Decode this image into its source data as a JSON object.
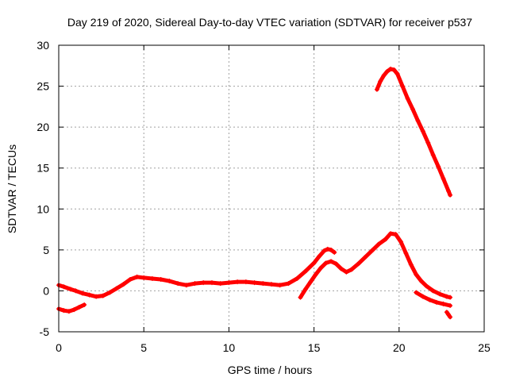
{
  "chart_data": {
    "type": "scatter",
    "title": "Day 219 of 2020, Sidereal Day-to-day VTEC variation (SDTVAR) for receiver p537",
    "xlabel": "GPS time / hours",
    "ylabel": "SDTVAR / TECUs",
    "xlim": [
      0,
      25
    ],
    "ylim": [
      -5,
      30
    ],
    "xticks": [
      0,
      5,
      10,
      15,
      20,
      25
    ],
    "yticks": [
      -5,
      0,
      5,
      10,
      15,
      20,
      25,
      30
    ],
    "xtick_labels": [
      "0",
      "5",
      "10",
      "15",
      "20",
      "25"
    ],
    "ytick_labels": [
      "-5",
      "0",
      "5",
      "10",
      "15",
      "20",
      "25",
      "30"
    ],
    "grid": true,
    "marker_color": "#ff0000",
    "series": [
      {
        "name": "track-a",
        "x": [
          0.0,
          0.3,
          0.7,
          1.0,
          1.4,
          1.8,
          2.2,
          2.6,
          3.0,
          3.4,
          3.8,
          4.2,
          4.6,
          5.0,
          5.5,
          6.0,
          6.5,
          7.0,
          7.5,
          8.0,
          8.5,
          9.0,
          9.5,
          10.0,
          10.5,
          11.0,
          11.5,
          12.0,
          12.5,
          13.0,
          13.5,
          14.0,
          14.5,
          15.0,
          15.3,
          15.6,
          15.8,
          16.0,
          16.2
        ],
        "y": [
          0.7,
          0.5,
          0.2,
          0.0,
          -0.3,
          -0.5,
          -0.7,
          -0.6,
          -0.2,
          0.3,
          0.8,
          1.4,
          1.7,
          1.6,
          1.5,
          1.4,
          1.2,
          0.9,
          0.7,
          0.9,
          1.0,
          1.0,
          0.9,
          1.0,
          1.1,
          1.1,
          1.0,
          0.9,
          0.8,
          0.7,
          0.9,
          1.5,
          2.4,
          3.4,
          4.2,
          4.9,
          5.1,
          5.0,
          4.7
        ]
      },
      {
        "name": "track-b",
        "x": [
          14.2,
          14.5,
          14.8,
          15.1,
          15.4,
          15.7,
          16.0,
          16.3,
          16.6,
          16.9,
          17.2,
          17.6,
          18.0,
          18.4,
          18.8,
          19.2,
          19.5,
          19.8,
          20.1,
          20.4,
          20.7,
          21.0,
          21.3,
          21.6,
          22.0,
          22.4,
          22.8,
          23.0
        ],
        "y": [
          -0.8,
          0.2,
          1.1,
          2.0,
          2.8,
          3.4,
          3.6,
          3.3,
          2.7,
          2.3,
          2.6,
          3.3,
          4.1,
          4.9,
          5.7,
          6.3,
          7.0,
          6.9,
          6.0,
          4.6,
          3.2,
          2.0,
          1.2,
          0.6,
          0.0,
          -0.4,
          -0.7,
          -0.8
        ]
      },
      {
        "name": "track-c",
        "x": [
          0.0,
          0.3,
          0.6,
          0.9,
          1.2,
          1.5
        ],
        "y": [
          -2.2,
          -2.4,
          -2.5,
          -2.3,
          -2.0,
          -1.7
        ]
      },
      {
        "name": "track-d",
        "x": [
          21.0,
          21.4,
          21.8,
          22.2,
          22.6,
          23.0
        ],
        "y": [
          -0.2,
          -0.7,
          -1.1,
          -1.4,
          -1.6,
          -1.8
        ]
      },
      {
        "name": "track-e",
        "x": [
          22.8,
          22.9,
          23.0
        ],
        "y": [
          -2.6,
          -2.9,
          -3.2
        ]
      },
      {
        "name": "track-f",
        "x": [
          18.7,
          18.9,
          19.1,
          19.3,
          19.5,
          19.7,
          19.9,
          20.2,
          20.5,
          20.8,
          21.1,
          21.4,
          21.7,
          22.0,
          22.3,
          22.6,
          22.9,
          23.0
        ],
        "y": [
          24.6,
          25.6,
          26.3,
          26.8,
          27.1,
          27.0,
          26.5,
          25.0,
          23.5,
          22.2,
          20.8,
          19.5,
          18.1,
          16.6,
          15.2,
          13.7,
          12.2,
          11.7
        ]
      }
    ]
  }
}
